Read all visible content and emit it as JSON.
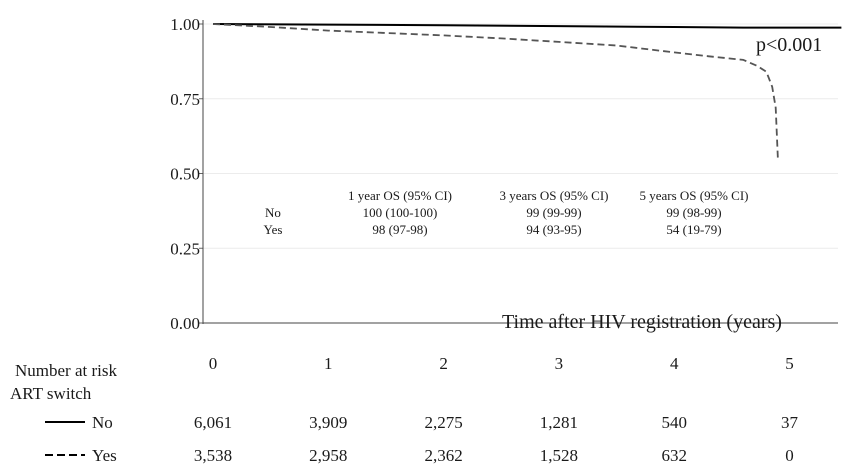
{
  "chart_data": {
    "type": "line",
    "xlabel": "Time after HIV registration (years)",
    "ylabel": "",
    "xlim": [
      0,
      5.45
    ],
    "ylim": [
      0,
      1
    ],
    "y_ticks": [
      "0.00",
      "0.25",
      "0.50",
      "0.75",
      "1.00"
    ],
    "x_ticks": [
      "0",
      "1",
      "2",
      "3",
      "4",
      "5"
    ],
    "grid": true,
    "p_value": "p<0.001",
    "series": [
      {
        "name": "No",
        "style": "solid",
        "color": "#000000",
        "points": [
          [
            0,
            1.0
          ],
          [
            1,
            0.998
          ],
          [
            2,
            0.996
          ],
          [
            3,
            0.993
          ],
          [
            4,
            0.99
          ],
          [
            4.6,
            0.988
          ],
          [
            5.45,
            0.988
          ]
        ]
      },
      {
        "name": "Yes",
        "style": "dashed",
        "color": "#555555",
        "points": [
          [
            0,
            1.0
          ],
          [
            0.5,
            0.99
          ],
          [
            1,
            0.978
          ],
          [
            1.5,
            0.97
          ],
          [
            2,
            0.962
          ],
          [
            2.5,
            0.952
          ],
          [
            3,
            0.94
          ],
          [
            3.5,
            0.928
          ],
          [
            4,
            0.905
          ],
          [
            4.3,
            0.892
          ],
          [
            4.6,
            0.88
          ],
          [
            4.72,
            0.86
          ],
          [
            4.8,
            0.84
          ],
          [
            4.85,
            0.79
          ],
          [
            4.88,
            0.72
          ],
          [
            4.9,
            0.54
          ]
        ]
      }
    ],
    "os_table": {
      "headers": [
        "1 year OS (95% CI)",
        "3 years OS (95% CI)",
        "5 years OS (95% CI)"
      ],
      "rows": [
        {
          "label": "No",
          "values": [
            "100 (100-100)",
            "99 (99-99)",
            "99 (98-99)"
          ]
        },
        {
          "label": "Yes",
          "values": [
            "98 (97-98)",
            "94 (93-95)",
            "54 (19-79)"
          ]
        }
      ]
    },
    "risk_table": {
      "title": "Number at risk",
      "group_title": "ART switch",
      "rows": [
        {
          "label": "No",
          "style": "solid",
          "values": [
            "6,061",
            "3,909",
            "2,275",
            "1,281",
            "540",
            "37"
          ]
        },
        {
          "label": "Yes",
          "style": "dashed",
          "values": [
            "3,538",
            "2,958",
            "2,362",
            "1,528",
            "632",
            "0"
          ]
        }
      ]
    }
  }
}
